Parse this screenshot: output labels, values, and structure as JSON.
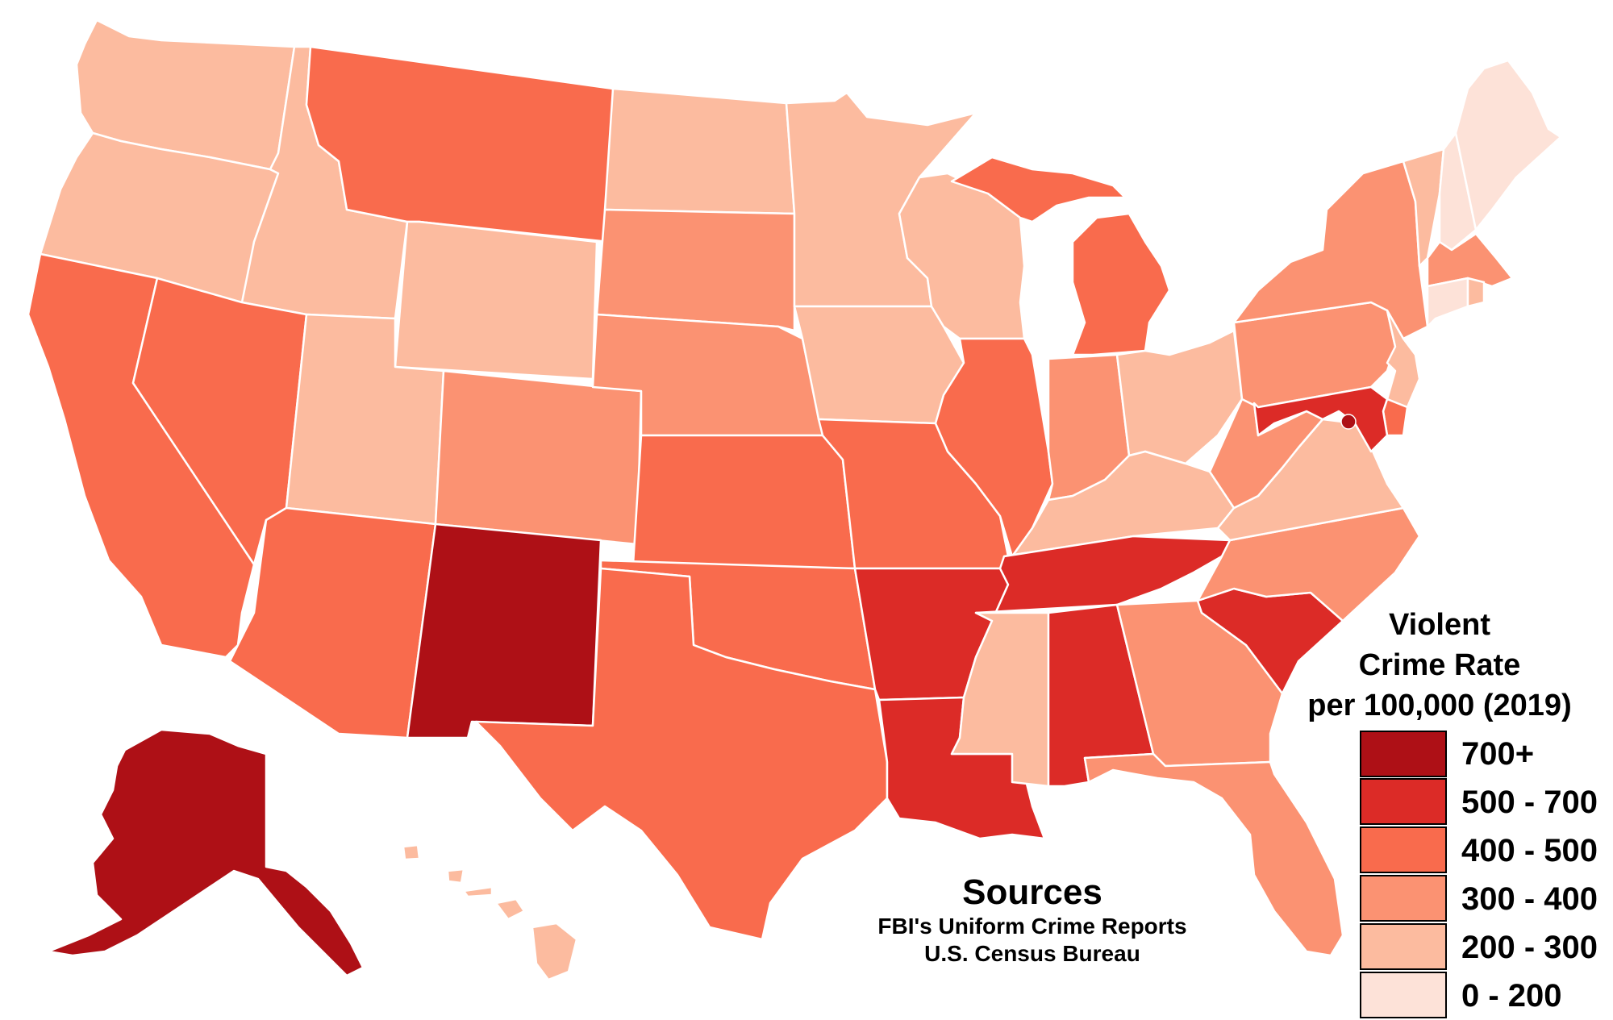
{
  "legend": {
    "title_line1": "Violent",
    "title_line2": "Crime Rate",
    "title_line3": "per 100,000 (2019)",
    "items": [
      {
        "label": "700+",
        "color": "#ae1016"
      },
      {
        "label": "500 - 700",
        "color": "#dc2b27"
      },
      {
        "label": "400 - 500",
        "color": "#f96b4d"
      },
      {
        "label": "300 - 400",
        "color": "#fb9272"
      },
      {
        "label": "200 - 300",
        "color": "#fcbb9f"
      },
      {
        "label": "0 - 200",
        "color": "#fde2d8"
      }
    ]
  },
  "sources": {
    "title": "Sources",
    "lines": [
      "FBI's Uniform Crime Reports",
      "U.S. Census Bureau"
    ]
  },
  "states": {
    "WA": "#fcbb9f",
    "OR": "#fcbb9f",
    "CA": "#f96b4d",
    "ID": "#fcbb9f",
    "NV": "#f96b4d",
    "MT": "#f96b4d",
    "WY": "#fcbb9f",
    "UT": "#fcbb9f",
    "AZ": "#f96b4d",
    "CO": "#fb9272",
    "NM": "#ae1016",
    "ND": "#fcbb9f",
    "SD": "#fb9272",
    "NE": "#fb9272",
    "KS": "#f96b4d",
    "OK": "#f96b4d",
    "TX": "#f96b4d",
    "MN": "#fcbb9f",
    "IA": "#fcbb9f",
    "MO": "#f96b4d",
    "AR": "#dc2b27",
    "LA": "#dc2b27",
    "WI": "#fcbb9f",
    "IL": "#f96b4d",
    "MI": "#f96b4d",
    "IN": "#fb9272",
    "OH": "#fcbb9f",
    "KY": "#fcbb9f",
    "TN": "#dc2b27",
    "MS": "#fcbb9f",
    "AL": "#dc2b27",
    "GA": "#fb9272",
    "FL": "#fb9272",
    "SC": "#dc2b27",
    "NC": "#fb9272",
    "VA": "#fcbb9f",
    "WV": "#fb9272",
    "PA": "#fb9272",
    "NY": "#fb9272",
    "VT": "#fcbb9f",
    "NH": "#fde2d8",
    "ME": "#fde2d8",
    "MA": "#fb9272",
    "RI": "#fcbb9f",
    "CT": "#fde2d8",
    "NJ": "#fcbb9f",
    "DE": "#f96b4d",
    "MD": "#dc2b27",
    "DC": "#ae1016",
    "AK": "#ae1016",
    "HI": "#fcbb9f"
  }
}
